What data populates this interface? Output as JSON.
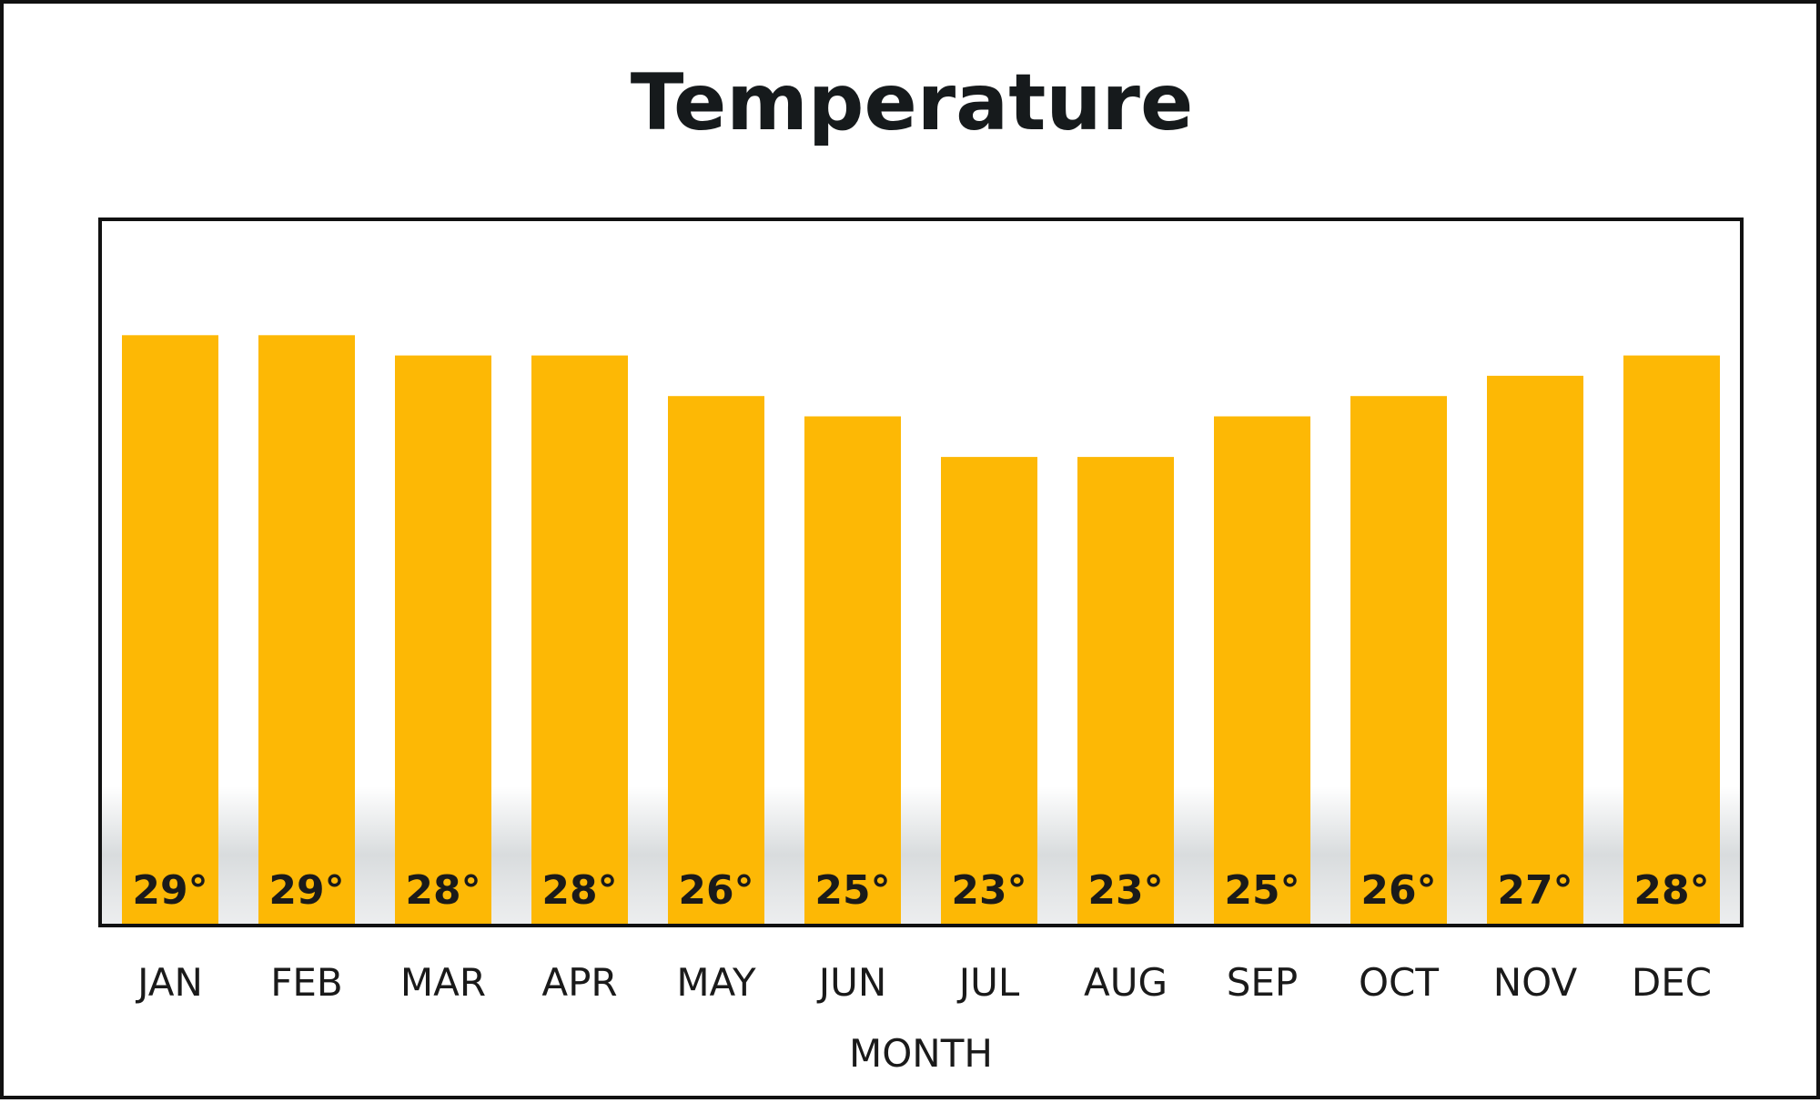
{
  "chart_data": {
    "type": "bar",
    "title": "Temperature",
    "xlabel": "MONTH",
    "ylabel": "",
    "categories": [
      "JAN",
      "FEB",
      "MAR",
      "APR",
      "MAY",
      "JUN",
      "JUL",
      "AUG",
      "SEP",
      "OCT",
      "NOV",
      "DEC"
    ],
    "values": [
      29,
      29,
      28,
      28,
      26,
      25,
      23,
      23,
      25,
      26,
      27,
      28
    ],
    "value_suffix": "°",
    "ylim": [
      0,
      35
    ],
    "grid": false,
    "bar_color": "#FDB805",
    "frame_color": "#111111"
  }
}
